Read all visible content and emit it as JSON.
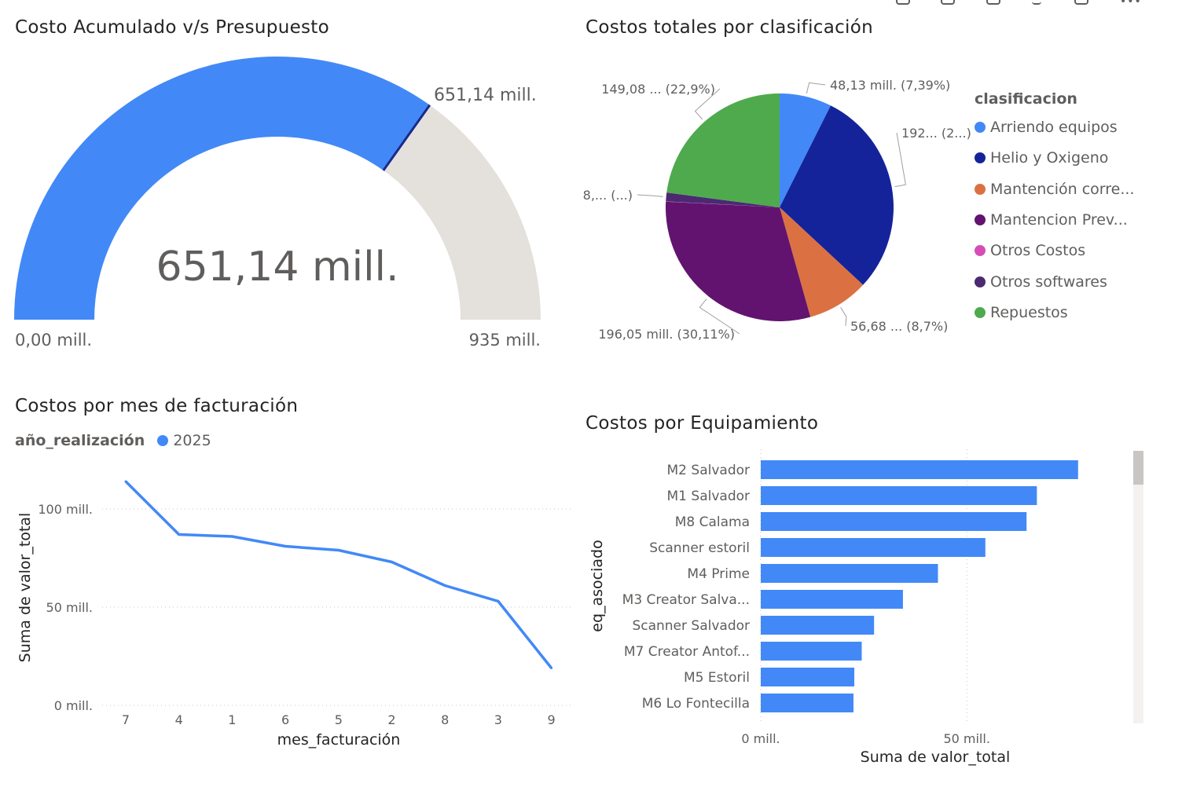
{
  "chart_data": [
    {
      "type": "gauge",
      "title": "Costo Acumulado v/s Presupuesto",
      "value": 651.14,
      "value_label": "651,14 mill.",
      "target_label": "651,14 mill.",
      "min": 0,
      "max": 935,
      "min_label": "0,00 mill.",
      "max_label": "935 mill.",
      "colors": {
        "fill": "#4289f7",
        "track": "#e4e1dd",
        "target": "#1a2a8c"
      }
    },
    {
      "type": "pie",
      "title": "Costos totales por clasificación",
      "legend_title": "clasificacion",
      "legend_position": "right",
      "categories": [
        "Arriendo equipos",
        "Helio y Oxigeno",
        "Mantención corre...",
        "Mantencion Prev...",
        "Otros Costos",
        "Otros softwares",
        "Repuestos"
      ],
      "values": [
        48.13,
        192.0,
        56.68,
        196.05,
        0.3,
        8.0,
        149.08
      ],
      "colors": [
        "#4289f7",
        "#15239a",
        "#db7142",
        "#62136f",
        "#d64eb5",
        "#4b2a72",
        "#4faa4e"
      ],
      "labels": [
        "48,13 mill. (7,39%)",
        "192... (2...)",
        "56,68 ... (8,7%)",
        "196,05 mill. (30,11%)",
        "",
        "8,... (...)",
        "149,08 ... (22,9%)"
      ]
    },
    {
      "type": "line",
      "title": "Costos por mes de facturación",
      "legend_title": "año_realización",
      "series": [
        {
          "name": "2025",
          "values": [
            114,
            87,
            86,
            81,
            79,
            73,
            61,
            53,
            19
          ],
          "color": "#4289f7"
        }
      ],
      "categories": [
        "7",
        "4",
        "1",
        "6",
        "5",
        "2",
        "8",
        "3",
        "9"
      ],
      "xlabel": "mes_facturación",
      "ylabel": "Suma de valor_total",
      "ylim": [
        0,
        125
      ],
      "yticks": [
        {
          "value": 0,
          "label": "0 mill."
        },
        {
          "value": 50,
          "label": "50 mill."
        },
        {
          "value": 100,
          "label": "100 mill."
        }
      ],
      "grid": true
    },
    {
      "type": "bar",
      "orientation": "horizontal",
      "title": "Costos por Equipamiento",
      "categories": [
        "M2 Salvador",
        "M1 Salvador",
        "M8 Calama",
        "Scanner estoril",
        "M4 Prime",
        "M3 Creator Salva...",
        "Scanner Salvador",
        "M7 Creator Antof...",
        "M5 Estoril",
        "M6 Lo Fontecilla"
      ],
      "values": [
        77,
        67,
        64.5,
        54.5,
        43,
        34.5,
        27.5,
        24.5,
        22.7,
        22.5
      ],
      "color": "#4289f7",
      "xlabel": "Suma de valor_total",
      "ylabel": "eq_asociado",
      "xlim": [
        0,
        82
      ],
      "xticks": [
        {
          "value": 0,
          "label": "0 mill."
        },
        {
          "value": 50,
          "label": "50 mill."
        }
      ],
      "grid": true
    }
  ]
}
